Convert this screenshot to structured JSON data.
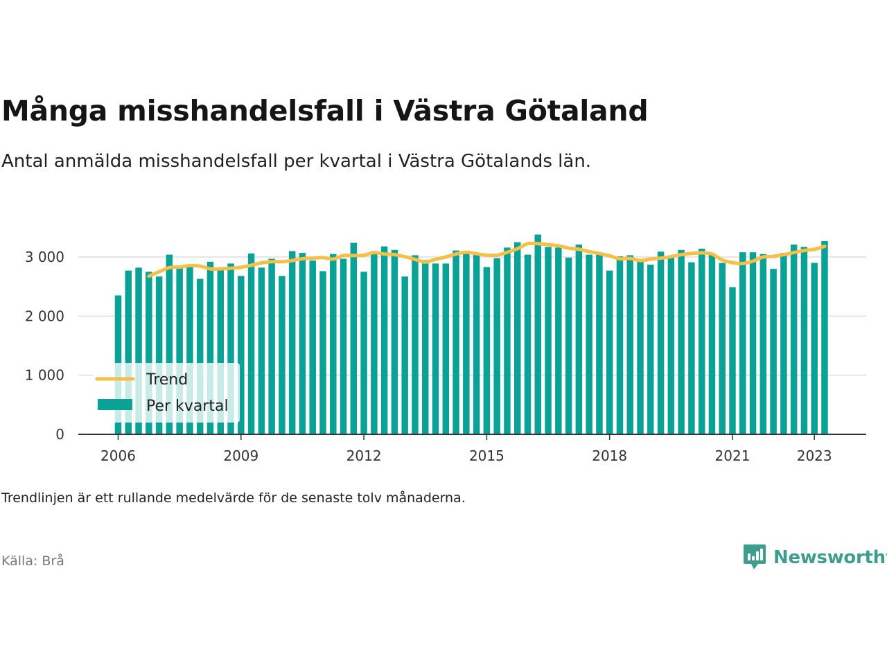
{
  "title": "Många misshandelsfall i Västra Götaland",
  "subtitle": "Antal anmälda misshandelsfall per kvartal i Västra Götalands län.",
  "note": "Trendlinjen är ett rullande medelvärde för de senaste tolv månaderna.",
  "source": "Källa: Brå",
  "brand": "Newsworthy",
  "colors": {
    "bars": "#0aa297",
    "trend": "#f5c04a",
    "brand": "#3f9d8e"
  },
  "chart_data": {
    "type": "bar",
    "title": "Många misshandelsfall i Västra Götaland",
    "ylim": [
      0,
      3400
    ],
    "yticks": [
      0,
      1000,
      2000,
      3000
    ],
    "ytick_labels": [
      "0",
      "1 000",
      "2 000",
      "3 000"
    ],
    "xticks": [
      2006,
      2009,
      2012,
      2015,
      2018,
      2021,
      2023
    ],
    "xtick_labels": [
      "2006",
      "2009",
      "2012",
      "2015",
      "2018",
      "2021",
      "2023"
    ],
    "grid": true,
    "legend_position": "bottom-left",
    "categories": [
      "2006Q1",
      "2006Q2",
      "2006Q3",
      "2006Q4",
      "2007Q1",
      "2007Q2",
      "2007Q3",
      "2007Q4",
      "2008Q1",
      "2008Q2",
      "2008Q3",
      "2008Q4",
      "2009Q1",
      "2009Q2",
      "2009Q3",
      "2009Q4",
      "2010Q1",
      "2010Q2",
      "2010Q3",
      "2010Q4",
      "2011Q1",
      "2011Q2",
      "2011Q3",
      "2011Q4",
      "2012Q1",
      "2012Q2",
      "2012Q3",
      "2012Q4",
      "2013Q1",
      "2013Q2",
      "2013Q3",
      "2013Q4",
      "2014Q1",
      "2014Q2",
      "2014Q3",
      "2014Q4",
      "2015Q1",
      "2015Q2",
      "2015Q3",
      "2015Q4",
      "2016Q1",
      "2016Q2",
      "2016Q3",
      "2016Q4",
      "2017Q1",
      "2017Q2",
      "2017Q3",
      "2017Q4",
      "2018Q1",
      "2018Q2",
      "2018Q3",
      "2018Q4",
      "2019Q1",
      "2019Q2",
      "2019Q3",
      "2019Q4",
      "2020Q1",
      "2020Q2",
      "2020Q3",
      "2020Q4",
      "2021Q1",
      "2021Q2",
      "2021Q3",
      "2021Q4",
      "2022Q1",
      "2022Q2",
      "2022Q3",
      "2022Q4",
      "2023Q1",
      "2023Q2"
    ],
    "series": [
      {
        "name": "Per kvartal",
        "type": "bar",
        "values": [
          2350,
          2770,
          2820,
          2750,
          2670,
          3040,
          2820,
          2860,
          2630,
          2920,
          2780,
          2890,
          2680,
          3060,
          2820,
          2970,
          2680,
          3100,
          3070,
          2940,
          2760,
          3050,
          2970,
          3240,
          2750,
          3100,
          3180,
          3120,
          2670,
          3030,
          2950,
          2890,
          2890,
          3110,
          3100,
          3060,
          2830,
          2980,
          3160,
          3250,
          3040,
          3380,
          3170,
          3160,
          2990,
          3210,
          3040,
          3070,
          2770,
          3010,
          3030,
          2930,
          2870,
          3090,
          2990,
          3120,
          2910,
          3140,
          3060,
          2900,
          2490,
          3080,
          3080,
          3050,
          2800,
          3070,
          3210,
          3170,
          2900,
          3270
        ]
      },
      {
        "name": "Trend",
        "type": "line",
        "values": [
          null,
          null,
          null,
          2675,
          2750,
          2820,
          2830,
          2855,
          2845,
          2800,
          2800,
          2810,
          2825,
          2860,
          2900,
          2920,
          2920,
          2940,
          2970,
          2980,
          2990,
          2965,
          3025,
          3025,
          3030,
          3075,
          3050,
          3040,
          3005,
          2960,
          2915,
          2960,
          3000,
          3050,
          3080,
          3055,
          3030,
          3030,
          3080,
          3140,
          3225,
          3225,
          3210,
          3190,
          3150,
          3130,
          3090,
          3060,
          3020,
          2970,
          2975,
          2940,
          2965,
          2980,
          3005,
          3040,
          3060,
          3070,
          3050,
          2950,
          2905,
          2890,
          2930,
          3000,
          3010,
          3040,
          3075,
          3110,
          3130,
          3180
        ]
      }
    ]
  }
}
